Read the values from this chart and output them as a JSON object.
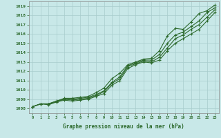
{
  "x": [
    0,
    1,
    2,
    3,
    4,
    5,
    6,
    7,
    8,
    9,
    10,
    11,
    12,
    13,
    14,
    15,
    16,
    17,
    18,
    19,
    20,
    21,
    22,
    23
  ],
  "line1": [
    1008.2,
    1008.5,
    1008.5,
    1008.8,
    1009.1,
    1009.1,
    1009.2,
    1009.3,
    1009.7,
    1010.2,
    1011.2,
    1011.8,
    1012.7,
    1013.0,
    1013.3,
    1013.4,
    1014.2,
    1015.8,
    1016.6,
    1016.5,
    1017.3,
    1018.2,
    1018.5,
    1019.1
  ],
  "line2": [
    1008.2,
    1008.5,
    1008.5,
    1008.8,
    1009.0,
    1009.0,
    1009.1,
    1009.2,
    1009.5,
    1009.9,
    1010.8,
    1011.4,
    1012.6,
    1012.9,
    1013.2,
    1013.2,
    1013.8,
    1015.0,
    1015.9,
    1016.2,
    1016.8,
    1017.4,
    1018.3,
    1018.8
  ],
  "line3": [
    1008.2,
    1008.5,
    1008.5,
    1008.7,
    1009.0,
    1008.9,
    1009.0,
    1009.1,
    1009.4,
    1009.8,
    1010.7,
    1011.2,
    1012.5,
    1012.8,
    1013.1,
    1013.0,
    1013.5,
    1014.5,
    1015.5,
    1015.9,
    1016.5,
    1017.0,
    1017.8,
    1018.6
  ],
  "line4": [
    1008.2,
    1008.5,
    1008.4,
    1008.7,
    1008.9,
    1008.8,
    1008.9,
    1009.0,
    1009.3,
    1009.6,
    1010.5,
    1011.0,
    1012.3,
    1012.7,
    1013.0,
    1012.9,
    1013.2,
    1014.2,
    1015.0,
    1015.5,
    1016.0,
    1016.5,
    1017.4,
    1018.3
  ],
  "line_color": "#2d6a2d",
  "bg_color": "#c8e8e8",
  "grid_color": "#a8cccc",
  "xlabel": "Graphe pression niveau de la mer (hPa)",
  "ylim": [
    1007.5,
    1019.5
  ],
  "xlim": [
    -0.5,
    23.5
  ],
  "yticks": [
    1008,
    1009,
    1010,
    1011,
    1012,
    1013,
    1014,
    1015,
    1016,
    1017,
    1018,
    1019
  ],
  "xticks": [
    0,
    1,
    2,
    3,
    4,
    5,
    6,
    7,
    8,
    9,
    10,
    11,
    12,
    13,
    14,
    15,
    16,
    17,
    18,
    19,
    20,
    21,
    22,
    23
  ],
  "marker": "+",
  "markersize": 3,
  "linewidth": 0.8
}
